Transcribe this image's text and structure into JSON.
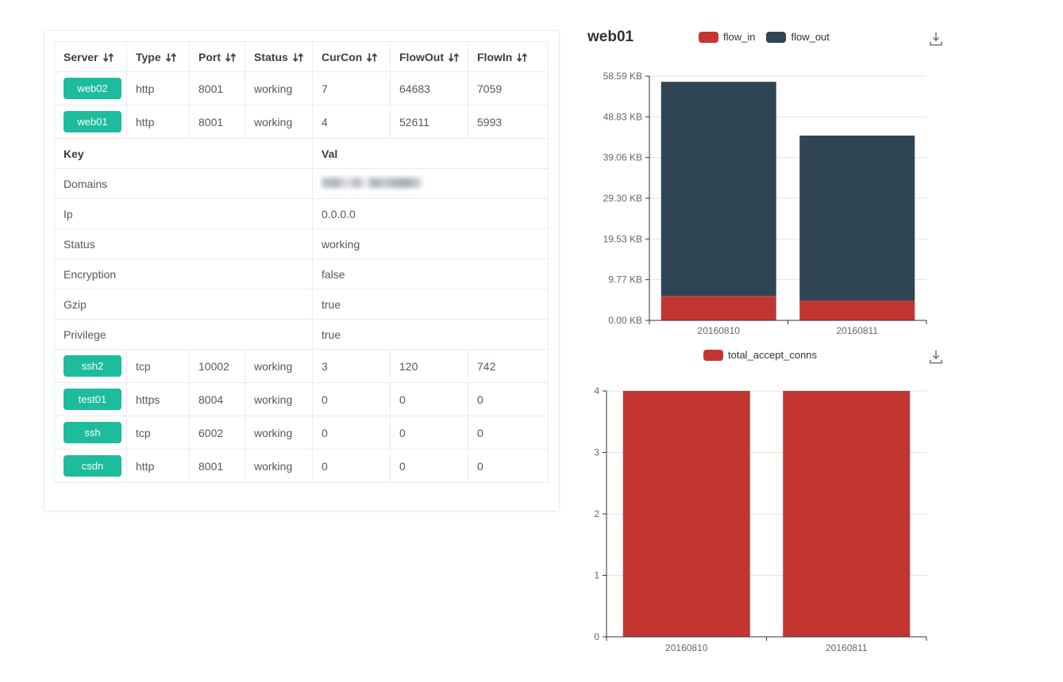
{
  "colors": {
    "badge": "#1cbc9c",
    "flow_in": "#c23531",
    "flow_out": "#2f4554",
    "accept_conns": "#c23531"
  },
  "table": {
    "columns": [
      {
        "label": "Server"
      },
      {
        "label": "Type"
      },
      {
        "label": "Port"
      },
      {
        "label": "Status"
      },
      {
        "label": "CurCon"
      },
      {
        "label": "FlowOut"
      },
      {
        "label": "FlowIn"
      }
    ],
    "server_rows_top": [
      {
        "server": "web02",
        "type": "http",
        "port": "8001",
        "status": "working",
        "curcon": "7",
        "flowout": "64683",
        "flowin": "7059"
      },
      {
        "server": "web01",
        "type": "http",
        "port": "8001",
        "status": "working",
        "curcon": "4",
        "flowout": "52611",
        "flowin": "5993"
      }
    ],
    "kv_header": {
      "key": "Key",
      "val": "Val"
    },
    "kv_rows": [
      {
        "key": "Domains",
        "value": "",
        "redacted": true
      },
      {
        "key": "Ip",
        "value": "0.0.0.0"
      },
      {
        "key": "Status",
        "value": "working"
      },
      {
        "key": "Encryption",
        "value": "false"
      },
      {
        "key": "Gzip",
        "value": "true"
      },
      {
        "key": "Privilege",
        "value": "true"
      }
    ],
    "server_rows_bottom": [
      {
        "server": "ssh2",
        "type": "tcp",
        "port": "10002",
        "status": "working",
        "curcon": "3",
        "flowout": "120",
        "flowin": "742"
      },
      {
        "server": "test01",
        "type": "https",
        "port": "8004",
        "status": "working",
        "curcon": "0",
        "flowout": "0",
        "flowin": "0"
      },
      {
        "server": "ssh",
        "type": "tcp",
        "port": "6002",
        "status": "working",
        "curcon": "0",
        "flowout": "0",
        "flowin": "0"
      },
      {
        "server": "csdn",
        "type": "http",
        "port": "8001",
        "status": "working",
        "curcon": "0",
        "flowout": "0",
        "flowin": "0"
      }
    ]
  },
  "chart_data": [
    {
      "type": "bar",
      "stacked": true,
      "title": "web01",
      "categories": [
        "20160810",
        "20160811"
      ],
      "series": [
        {
          "name": "flow_in",
          "color": "#c23531",
          "values": [
            5.85,
            4.75
          ]
        },
        {
          "name": "flow_out",
          "color": "#2f4554",
          "values": [
            51.38,
            39.58
          ]
        }
      ],
      "unit": "KB",
      "ylim": [
        0,
        58.59
      ],
      "y_ticks": [
        "0.00 KB",
        "9.77 KB",
        "19.53 KB",
        "29.30 KB",
        "39.06 KB",
        "48.83 KB",
        "58.59 KB"
      ],
      "legend_position": "top",
      "grid": true
    },
    {
      "type": "bar",
      "stacked": false,
      "title": "",
      "categories": [
        "20160810",
        "20160811"
      ],
      "series": [
        {
          "name": "total_accept_conns",
          "color": "#c23531",
          "values": [
            4,
            4
          ]
        }
      ],
      "unit": "",
      "ylim": [
        0,
        4
      ],
      "y_ticks": [
        "0",
        "1",
        "2",
        "3",
        "4"
      ],
      "legend_position": "top",
      "grid": true
    }
  ]
}
